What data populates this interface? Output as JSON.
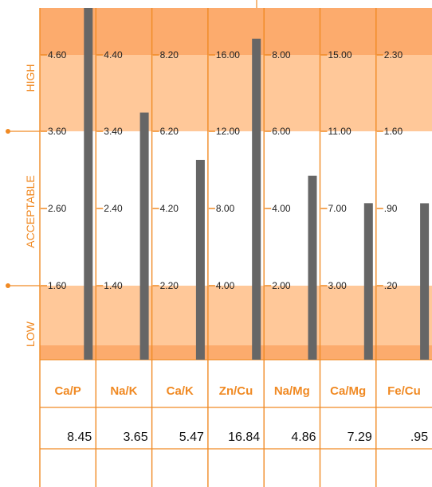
{
  "chart_data": {
    "type": "bar",
    "bands": [
      "HIGH",
      "ACCEPTABLE",
      "LOW"
    ],
    "categories": [
      "Ca/P",
      "Na/K",
      "Ca/K",
      "Zn/Cu",
      "Na/Mg",
      "Ca/Mg",
      "Fe/Cu"
    ],
    "values": [
      "8.45",
      "3.65",
      "5.47",
      "16.84",
      "4.86",
      "7.29",
      ".95"
    ],
    "ticks": [
      [
        "4.60",
        "3.60",
        "2.60",
        "1.60"
      ],
      [
        "4.40",
        "3.40",
        "2.40",
        "1.40"
      ],
      [
        "8.20",
        "6.20",
        "4.20",
        "2.20"
      ],
      [
        "16.00",
        "12.00",
        "8.00",
        "4.00"
      ],
      [
        "8.00",
        "6.00",
        "4.00",
        "2.00"
      ],
      [
        "15.00",
        "11.00",
        "7.00",
        "3.00"
      ],
      [
        "2.30",
        "1.60",
        ".90",
        ".20"
      ]
    ],
    "tick_values": [
      [
        4.6,
        3.6,
        2.6,
        1.6
      ],
      [
        4.4,
        3.4,
        2.4,
        1.4
      ],
      [
        8.2,
        6.2,
        4.2,
        2.2
      ],
      [
        16.0,
        12.0,
        8.0,
        4.0
      ],
      [
        8.0,
        6.0,
        4.0,
        2.0
      ],
      [
        15.0,
        11.0,
        7.0,
        3.0
      ],
      [
        2.3,
        1.6,
        0.9,
        0.2
      ]
    ],
    "colors": {
      "accent": "#f08a24",
      "high_band": "#ffc899",
      "high_top": "#fcab6d",
      "low_band": "#ffc899",
      "low_bottom": "#fcab6d",
      "bar": "#666666"
    }
  }
}
